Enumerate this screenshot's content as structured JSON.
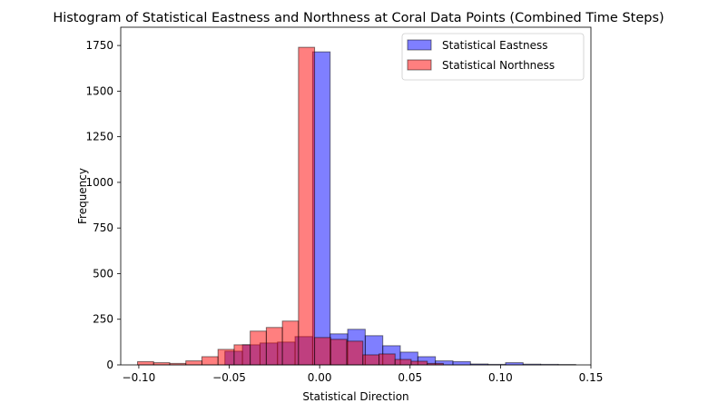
{
  "chart_data": {
    "type": "bar",
    "title": "Histogram of Statistical Eastness and Northness at Coral Data Points (Combined Time Steps)",
    "xlabel": "Statistical Direction",
    "ylabel": "Frequency",
    "xlim": [
      -0.11,
      0.15
    ],
    "ylim": [
      0,
      1850
    ],
    "xticks": [
      -0.1,
      -0.05,
      0.0,
      0.05,
      0.1,
      0.15
    ],
    "xtick_labels": [
      "−0.10",
      "−0.05",
      "0.00",
      "0.05",
      "0.10",
      "0.15"
    ],
    "yticks": [
      0,
      250,
      500,
      750,
      1000,
      1250,
      1500,
      1750
    ],
    "ytick_labels": [
      "0",
      "250",
      "500",
      "750",
      "1000",
      "1250",
      "1500",
      "1750"
    ],
    "grid": false,
    "legend_position": "top-right",
    "series": [
      {
        "name": "Statistical Eastness",
        "color": "#0000ff",
        "bins": [
          [
            -0.0524,
            -0.0427,
            75
          ],
          [
            -0.0427,
            -0.033,
            110
          ],
          [
            -0.033,
            -0.0233,
            120
          ],
          [
            -0.0233,
            -0.0136,
            125
          ],
          [
            -0.0136,
            -0.0039,
            155
          ],
          [
            -0.0039,
            0.0058,
            1715
          ],
          [
            0.0058,
            0.0155,
            170
          ],
          [
            0.0155,
            0.0252,
            195
          ],
          [
            0.0252,
            0.0349,
            160
          ],
          [
            0.0349,
            0.0446,
            105
          ],
          [
            0.0446,
            0.0543,
            70
          ],
          [
            0.0543,
            0.064,
            45
          ],
          [
            0.064,
            0.0737,
            22
          ],
          [
            0.0737,
            0.0834,
            18
          ],
          [
            0.0834,
            0.0931,
            5
          ],
          [
            0.0931,
            0.1028,
            3
          ],
          [
            0.1028,
            0.1125,
            12
          ],
          [
            0.1125,
            0.1222,
            4
          ],
          [
            0.1222,
            0.1319,
            3
          ],
          [
            0.1319,
            0.1416,
            2
          ]
        ]
      },
      {
        "name": "Statistical Northness",
        "color": "#ff0000",
        "bins": [
          [
            -0.1007,
            -0.0918,
            18
          ],
          [
            -0.0918,
            -0.0829,
            12
          ],
          [
            -0.0829,
            -0.074,
            8
          ],
          [
            -0.074,
            -0.0651,
            22
          ],
          [
            -0.0651,
            -0.0562,
            45
          ],
          [
            -0.0562,
            -0.0473,
            85
          ],
          [
            -0.0473,
            -0.0384,
            110
          ],
          [
            -0.0384,
            -0.0295,
            185
          ],
          [
            -0.0295,
            -0.0206,
            205
          ],
          [
            -0.0206,
            -0.0117,
            240
          ],
          [
            -0.0117,
            -0.0028,
            1740
          ],
          [
            -0.0028,
            0.0061,
            150
          ],
          [
            0.0061,
            0.015,
            140
          ],
          [
            0.015,
            0.0239,
            130
          ],
          [
            0.0239,
            0.0328,
            55
          ],
          [
            0.0328,
            0.0417,
            60
          ],
          [
            0.0417,
            0.0506,
            30
          ],
          [
            0.0506,
            0.0595,
            20
          ],
          [
            0.0595,
            0.0684,
            8
          ]
        ]
      }
    ]
  }
}
